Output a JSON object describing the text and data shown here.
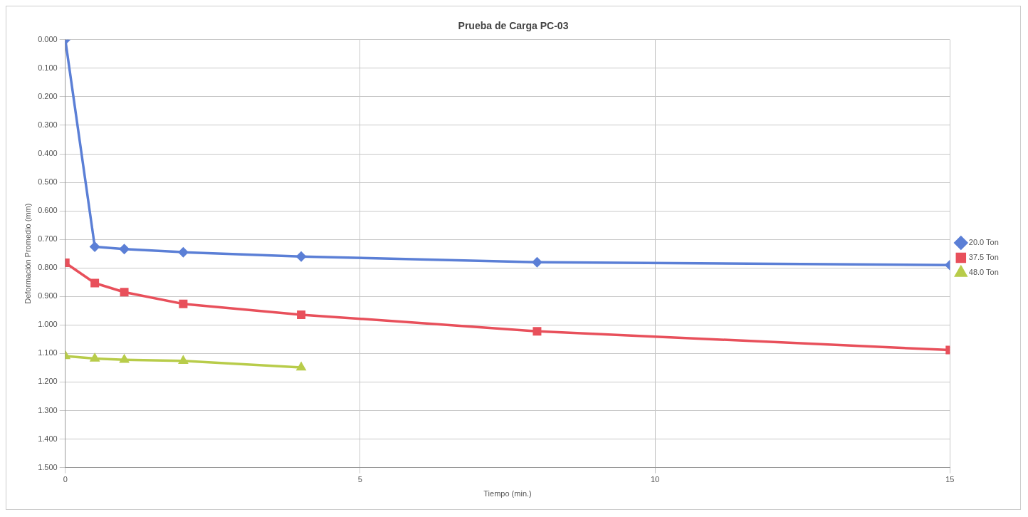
{
  "chart_data": {
    "type": "line",
    "title": "Prueba de Carga PC-03",
    "xlabel": "Tiempo (min.)",
    "ylabel": "Deformación Promedio (mm)",
    "xlim": [
      0,
      15
    ],
    "xticks": [
      0,
      5,
      10,
      15
    ],
    "ylim": [
      1.5,
      0
    ],
    "yticks": [
      {
        "value": 0,
        "label": "0.000"
      },
      {
        "value": 0.1,
        "label": "0.100"
      },
      {
        "value": 0.2,
        "label": "0.200"
      },
      {
        "value": 0.3,
        "label": "0.300"
      },
      {
        "value": 0.4,
        "label": "0.400"
      },
      {
        "value": 0.5,
        "label": "0.500"
      },
      {
        "value": 0.6,
        "label": "0.600"
      },
      {
        "value": 0.7,
        "label": "0.700"
      },
      {
        "value": 0.8,
        "label": "0.800"
      },
      {
        "value": 0.9,
        "label": "0.900"
      },
      {
        "value": 1.0,
        "label": "1.000"
      },
      {
        "value": 1.1,
        "label": "1.100"
      },
      {
        "value": 1.2,
        "label": "1.200"
      },
      {
        "value": 1.3,
        "label": "1.300"
      },
      {
        "value": 1.4,
        "label": "1.400"
      },
      {
        "value": 1.5,
        "label": "1.500"
      }
    ],
    "grid": true,
    "legend": "right",
    "line_style": "solid",
    "series": [
      {
        "name": "20.0 Ton",
        "color": "#5b7fd6",
        "marker": "diamond",
        "x": [
          0,
          0.5,
          1,
          2,
          4,
          8,
          15
        ],
        "values": [
          0,
          0.726,
          0.734,
          0.745,
          0.76,
          0.78,
          0.79
        ]
      },
      {
        "name": "37.5 Ton",
        "color": "#e8505b",
        "marker": "square",
        "x": [
          0,
          0.5,
          1,
          2,
          4,
          8,
          15
        ],
        "values": [
          0.782,
          0.853,
          0.885,
          0.926,
          0.964,
          1.022,
          1.088
        ]
      },
      {
        "name": "48.0 Ton",
        "color": "#b8cc4a",
        "marker": "triangle",
        "x": [
          0,
          0.5,
          1,
          2,
          4
        ],
        "values": [
          1.109,
          1.118,
          1.122,
          1.126,
          1.149
        ]
      }
    ]
  }
}
